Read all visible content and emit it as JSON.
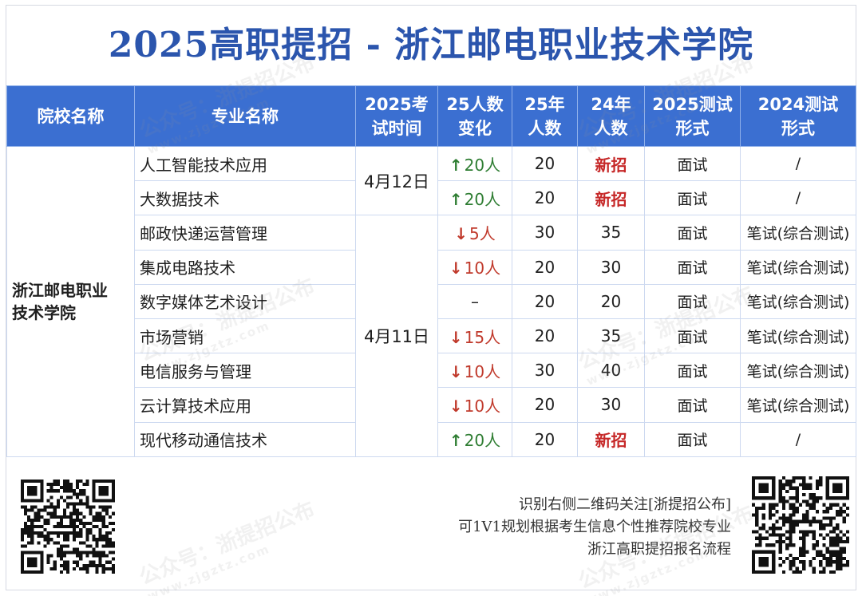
{
  "title": "2025高职提招 - 浙江邮电职业技术学院",
  "colors": {
    "title": "#2b55ad",
    "header_bg": "#3b6fd1",
    "up": "#2e7d32",
    "down": "#c0392b",
    "new": "#c62828"
  },
  "table": {
    "headers": {
      "school": "院校名称",
      "major": "专业名称",
      "exam_time_l1": "2025考",
      "exam_time_l2": "试时间",
      "change_l1": "25人数",
      "change_l2": "变化",
      "n25_l1": "25年",
      "n25_l2": "人数",
      "n24_l1": "24年",
      "n24_l2": "人数",
      "form25_l1": "2025测试",
      "form25_l2": "形式",
      "form24_l1": "2024测试",
      "form24_l2": "形式"
    },
    "school_line1": "浙江邮电职业",
    "school_line2": "技术学院",
    "dates": [
      "4月12日",
      "4月11日"
    ],
    "rows": [
      {
        "major": "人工智能技术应用",
        "change": "20人",
        "dir": "up",
        "n25": "20",
        "n24": "新招",
        "form25": "面试",
        "form24": "/"
      },
      {
        "major": "大数据技术",
        "change": "20人",
        "dir": "up",
        "n25": "20",
        "n24": "新招",
        "form25": "面试",
        "form24": "/"
      },
      {
        "major": "邮政快递运营管理",
        "change": "5人",
        "dir": "down",
        "n25": "30",
        "n24": "35",
        "form25": "面试",
        "form24": "笔试(综合测试)"
      },
      {
        "major": "集成电路技术",
        "change": "10人",
        "dir": "down",
        "n25": "20",
        "n24": "30",
        "form25": "面试",
        "form24": "笔试(综合测试)"
      },
      {
        "major": "数字媒体艺术设计",
        "change": "–",
        "dir": "none",
        "n25": "20",
        "n24": "20",
        "form25": "面试",
        "form24": "笔试(综合测试)"
      },
      {
        "major": "市场营销",
        "change": "15人",
        "dir": "down",
        "n25": "20",
        "n24": "35",
        "form25": "面试",
        "form24": "笔试(综合测试)"
      },
      {
        "major": "电信服务与管理",
        "change": "10人",
        "dir": "down",
        "n25": "30",
        "n24": "40",
        "form25": "面试",
        "form24": "笔试(综合测试)"
      },
      {
        "major": "云计算技术应用",
        "change": "10人",
        "dir": "down",
        "n25": "20",
        "n24": "30",
        "form25": "面试",
        "form24": "笔试(综合测试)"
      },
      {
        "major": "现代移动通信技术",
        "change": "20人",
        "dir": "up",
        "n25": "20",
        "n24": "新招",
        "form25": "面试",
        "form24": "/"
      }
    ]
  },
  "footer": {
    "line1": "识别右侧二维码关注[浙提招公布]",
    "line2": "可1V1规划根据考生信息个性推荐院校专业",
    "line3": "浙江高职提招报名流程"
  },
  "watermark": {
    "text": "公众号：浙提招公布",
    "url": "www.zjgztz.com"
  }
}
